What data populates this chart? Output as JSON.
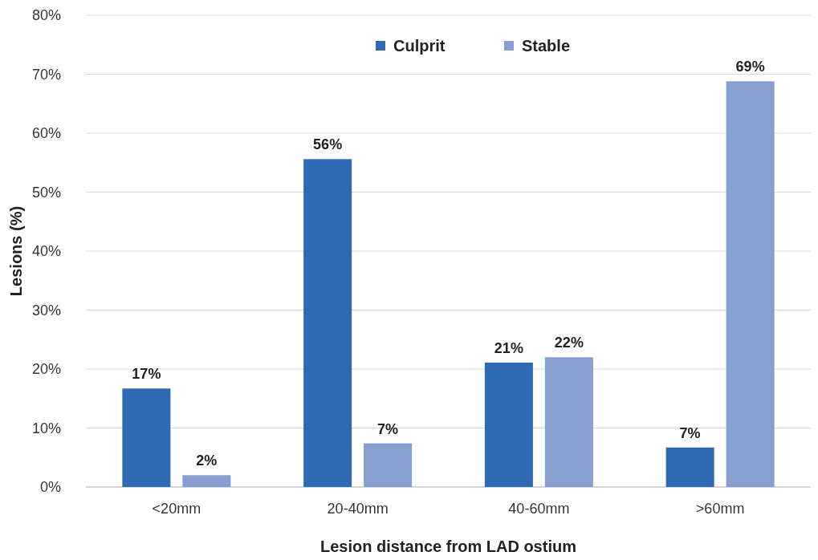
{
  "chart_data": {
    "type": "bar",
    "xlabel": "Lesion distance from LAD ostium",
    "ylabel": "Lesions (%)",
    "categories": [
      "<20mm",
      "20-40mm",
      "40-60mm",
      ">60mm"
    ],
    "series": [
      {
        "name": "Culprit",
        "color": "#2f69b3",
        "values": [
          16.7,
          55.6,
          21.1,
          6.7
        ],
        "value_labels": [
          "17%",
          "56%",
          "21%",
          "7%"
        ]
      },
      {
        "name": "Stable",
        "color": "#869fd0",
        "values": [
          2,
          7.4,
          22,
          68.8
        ],
        "value_labels": [
          "2%",
          "7%",
          "22%",
          "69%"
        ]
      }
    ],
    "ylim": [
      0,
      80
    ],
    "yticks": [
      {
        "value": 0,
        "label": "0%"
      },
      {
        "value": 10,
        "label": "10%"
      },
      {
        "value": 20,
        "label": "20%"
      },
      {
        "value": 30,
        "label": "30%"
      },
      {
        "value": 40,
        "label": "40%"
      },
      {
        "value": 50,
        "label": "50%"
      },
      {
        "value": 60,
        "label": "60%"
      },
      {
        "value": 70,
        "label": "70%"
      },
      {
        "value": 80,
        "label": "80%"
      }
    ],
    "grid": "y",
    "legend": "top"
  }
}
